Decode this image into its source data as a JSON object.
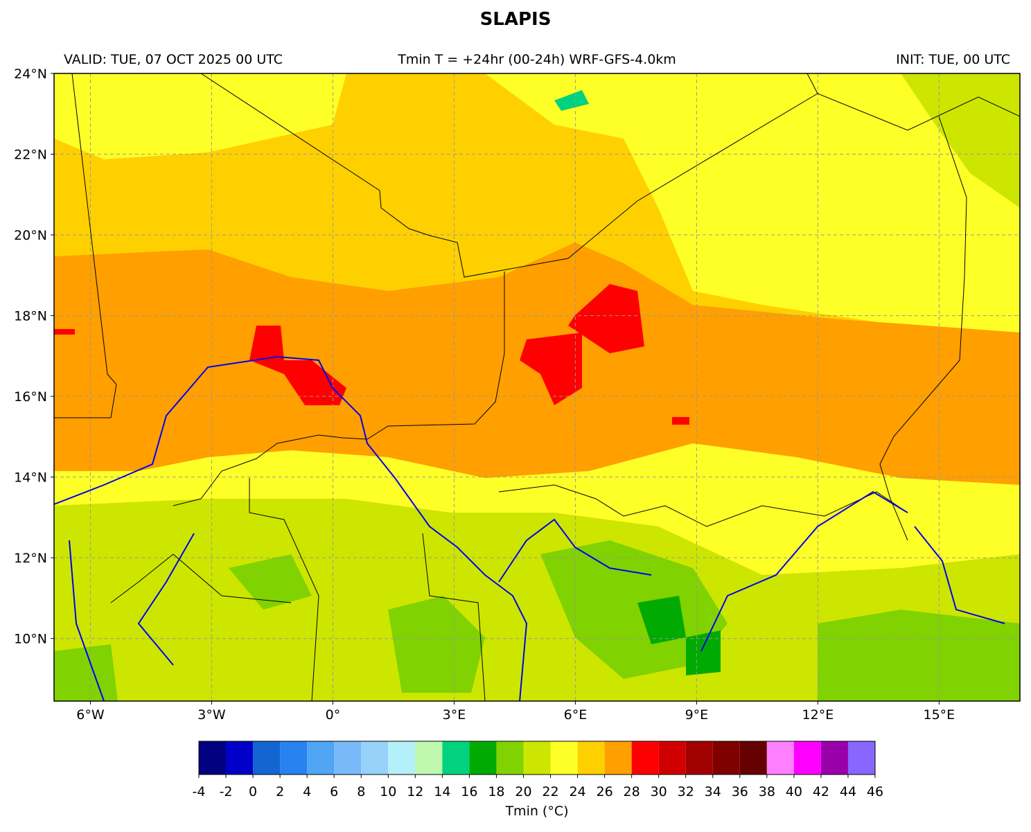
{
  "title": "SLAPIS",
  "header": {
    "left": "VALID: TUE, 07 OCT 2025 00 UTC",
    "center": "Tmin T = +24hr (00-24h) WRF-GFS-4.0km",
    "right": "INIT: TUE, 00 UTC"
  },
  "map": {
    "lonlim": [
      -6.9,
      17
    ],
    "latlim": [
      8.45,
      24
    ],
    "grid": true,
    "lat_ticks": [
      {
        "value": 10,
        "label": "10°N"
      },
      {
        "value": 12,
        "label": "12°N"
      },
      {
        "value": 14,
        "label": "14°N"
      },
      {
        "value": 16,
        "label": "16°N"
      },
      {
        "value": 18,
        "label": "18°N"
      },
      {
        "value": 20,
        "label": "20°N"
      },
      {
        "value": 22,
        "label": "22°N"
      },
      {
        "value": 24,
        "label": "24°N"
      }
    ],
    "lon_ticks": [
      {
        "value": -6,
        "label": "6°W"
      },
      {
        "value": -3,
        "label": "3°W"
      },
      {
        "value": 0,
        "label": "0°"
      },
      {
        "value": 3,
        "label": "3°E"
      },
      {
        "value": 6,
        "label": "6°E"
      },
      {
        "value": 9,
        "label": "9°E"
      },
      {
        "value": 12,
        "label": "12°E"
      },
      {
        "value": 15,
        "label": "15°E"
      }
    ]
  },
  "colorbar": {
    "label": "Tmin (°C)",
    "ticks": [
      -4,
      -2,
      0,
      2,
      4,
      6,
      8,
      10,
      12,
      14,
      16,
      18,
      20,
      22,
      24,
      26,
      28,
      30,
      32,
      34,
      36,
      38,
      40,
      42,
      44,
      46
    ],
    "colors": [
      "#000080",
      "#0000c8",
      "#1464d2",
      "#2882f0",
      "#50a5f5",
      "#78b9fa",
      "#96d2fa",
      "#b4f0fa",
      "#c0f8b0",
      "#00d27d",
      "#00aa00",
      "#80d200",
      "#cce600",
      "#ffff28",
      "#ffd000",
      "#ff9f00",
      "#ff0000",
      "#d00000",
      "#a00000",
      "#800000",
      "#640000",
      "#ff80ff",
      "#ff00ff",
      "#9900aa",
      "#8866ff"
    ]
  }
}
